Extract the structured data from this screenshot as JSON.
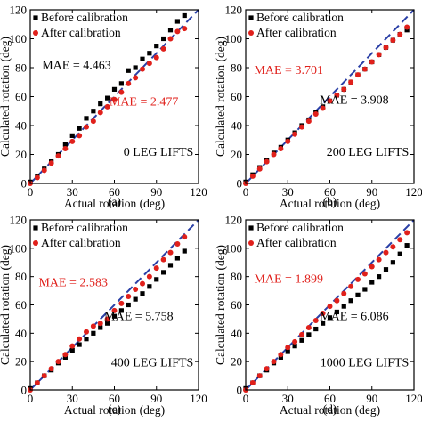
{
  "chart_data": [
    {
      "type": "scatter",
      "caption": "(a)",
      "label": "0 LEG LIFTS",
      "xlabel": "Actual rotation (deg)",
      "ylabel": "Calculated rotation (deg)",
      "xlim": [
        0,
        120
      ],
      "ylim": [
        0,
        120
      ],
      "xticks": [
        "0",
        "30",
        "60",
        "90",
        "120"
      ],
      "yticks": [
        "0",
        "20",
        "40",
        "60",
        "80",
        "100",
        "120"
      ],
      "legend": [
        "Before calibration",
        "After calibration"
      ],
      "legend_position": "top-left",
      "reference_line": [
        [
          0,
          0
        ],
        [
          120,
          120
        ]
      ],
      "annotations": [
        {
          "text": "MAE = 4.463",
          "color": "#000000"
        },
        {
          "text": "MAE = 2.477",
          "color": "#e0201b"
        }
      ],
      "series": [
        {
          "name": "Before calibration",
          "color": "#000000",
          "marker": "square",
          "x": [
            0,
            5,
            10,
            15,
            20,
            25,
            30,
            35,
            40,
            45,
            50,
            55,
            60,
            65,
            70,
            75,
            80,
            85,
            90,
            95,
            100,
            105,
            110
          ],
          "y": [
            1,
            5,
            10,
            15,
            20,
            27,
            33,
            38,
            45,
            50,
            55,
            59,
            65,
            69,
            78,
            80,
            86,
            90,
            95,
            100,
            106,
            112,
            116
          ]
        },
        {
          "name": "After calibration",
          "color": "#e0201b",
          "marker": "circle",
          "x": [
            0,
            5,
            10,
            15,
            20,
            25,
            30,
            35,
            40,
            45,
            50,
            55,
            60,
            65,
            70,
            75,
            80,
            85,
            90,
            95,
            100,
            105,
            110
          ],
          "y": [
            0,
            4,
            9,
            14,
            19,
            24,
            29,
            33,
            39,
            43,
            49,
            53,
            58,
            63,
            69,
            73,
            79,
            83,
            87,
            93,
            100,
            105,
            107
          ]
        }
      ]
    },
    {
      "type": "scatter",
      "caption": "(b)",
      "label": "200 LEG LIFTS",
      "xlabel": "Actual rotation (deg)",
      "ylabel": "Calculated rotation (deg)",
      "xlim": [
        0,
        120
      ],
      "ylim": [
        0,
        120
      ],
      "xticks": [
        "0",
        "30",
        "60",
        "90",
        "120"
      ],
      "yticks": [
        "0",
        "20",
        "40",
        "60",
        "80",
        "100",
        "120"
      ],
      "legend": [
        "Before calibration",
        "After calibration"
      ],
      "legend_position": "top-left",
      "reference_line": [
        [
          0,
          0
        ],
        [
          120,
          120
        ]
      ],
      "annotations": [
        {
          "text": "MAE = 3.701",
          "color": "#e0201b"
        },
        {
          "text": "MAE = 3.908",
          "color": "#000000"
        }
      ],
      "series": [
        {
          "name": "Before calibration",
          "color": "#000000",
          "marker": "square",
          "x": [
            0,
            5,
            10,
            15,
            20,
            25,
            30,
            35,
            40,
            45,
            50,
            55,
            60,
            65,
            70,
            75,
            80,
            85,
            90,
            95,
            100,
            105,
            110,
            115
          ],
          "y": [
            1,
            6,
            11,
            16,
            21,
            25,
            30,
            35,
            40,
            44,
            49,
            53,
            57,
            61,
            65,
            70,
            75,
            79,
            84,
            89,
            94,
            99,
            103,
            106
          ]
        },
        {
          "name": "After calibration",
          "color": "#e0201b",
          "marker": "circle",
          "x": [
            0,
            5,
            10,
            15,
            20,
            25,
            30,
            35,
            40,
            45,
            50,
            55,
            60,
            65,
            70,
            75,
            80,
            85,
            90,
            95,
            100,
            105,
            110,
            115
          ],
          "y": [
            0,
            5,
            10,
            15,
            20,
            24,
            29,
            34,
            39,
            43,
            48,
            52,
            57,
            61,
            65,
            70,
            75,
            79,
            84,
            89,
            94,
            99,
            103,
            108
          ]
        }
      ]
    },
    {
      "type": "scatter",
      "caption": "(c)",
      "label": "400 LEG LIFTS",
      "xlabel": "Actual rotation (deg)",
      "ylabel": "Calculated rotation (deg)",
      "xlim": [
        0,
        120
      ],
      "ylim": [
        0,
        120
      ],
      "xticks": [
        "0",
        "30",
        "60",
        "90",
        "120"
      ],
      "yticks": [
        "0",
        "20",
        "40",
        "60",
        "80",
        "100",
        "120"
      ],
      "legend": [
        "Before calibration",
        "After calibration"
      ],
      "legend_position": "top-left",
      "reference_line": [
        [
          0,
          0
        ],
        [
          120,
          120
        ]
      ],
      "annotations": [
        {
          "text": "MAE = 2.583",
          "color": "#e0201b"
        },
        {
          "text": "MAE = 5.758",
          "color": "#000000"
        }
      ],
      "series": [
        {
          "name": "Before calibration",
          "color": "#000000",
          "marker": "square",
          "x": [
            0,
            5,
            10,
            15,
            20,
            25,
            30,
            35,
            40,
            45,
            50,
            55,
            60,
            65,
            70,
            75,
            80,
            85,
            90,
            95,
            100,
            105,
            110
          ],
          "y": [
            1,
            5,
            10,
            14,
            19,
            23,
            28,
            32,
            36,
            40,
            44,
            47,
            52,
            56,
            60,
            64,
            68,
            73,
            78,
            83,
            88,
            93,
            98
          ]
        },
        {
          "name": "After calibration",
          "color": "#e0201b",
          "marker": "circle",
          "x": [
            0,
            5,
            10,
            15,
            20,
            25,
            30,
            35,
            40,
            45,
            50,
            55,
            60,
            65,
            70,
            75,
            80,
            85,
            90,
            95,
            100,
            105,
            110
          ],
          "y": [
            0,
            5,
            10,
            15,
            20,
            25,
            31,
            36,
            41,
            45,
            47,
            50,
            56,
            61,
            66,
            71,
            75,
            80,
            86,
            92,
            97,
            103,
            108
          ]
        }
      ]
    },
    {
      "type": "scatter",
      "caption": "(d)",
      "label": "1000 LEG LIFTS",
      "xlabel": "Actual rotation (deg)",
      "ylabel": "Calculated rotation (deg)",
      "xlim": [
        0,
        120
      ],
      "ylim": [
        0,
        120
      ],
      "xticks": [
        "0",
        "30",
        "60",
        "90",
        "120"
      ],
      "yticks": [
        "0",
        "20",
        "40",
        "60",
        "80",
        "100",
        "120"
      ],
      "legend": [
        "Before calibration",
        "After calibration"
      ],
      "legend_position": "top-left",
      "reference_line": [
        [
          0,
          0
        ],
        [
          120,
          120
        ]
      ],
      "annotations": [
        {
          "text": "MAE = 1.899",
          "color": "#e0201b"
        },
        {
          "text": "MAE = 6.086",
          "color": "#000000"
        }
      ],
      "series": [
        {
          "name": "Before calibration",
          "color": "#000000",
          "marker": "square",
          "x": [
            0,
            5,
            10,
            15,
            20,
            25,
            30,
            35,
            40,
            45,
            50,
            55,
            60,
            65,
            70,
            75,
            80,
            85,
            90,
            95,
            100,
            105,
            110,
            115
          ],
          "y": [
            1,
            5,
            10,
            14,
            19,
            23,
            27,
            31,
            35,
            39,
            43,
            47,
            51,
            55,
            59,
            63,
            67,
            71,
            76,
            80,
            85,
            90,
            96,
            102
          ]
        },
        {
          "name": "After calibration",
          "color": "#e0201b",
          "marker": "circle",
          "x": [
            0,
            5,
            10,
            15,
            20,
            25,
            30,
            35,
            40,
            45,
            50,
            55,
            60,
            65,
            70,
            75,
            80,
            85,
            90,
            95,
            100,
            105,
            110,
            115
          ],
          "y": [
            0,
            5,
            10,
            15,
            20,
            25,
            30,
            34,
            39,
            44,
            49,
            54,
            59,
            63,
            68,
            73,
            78,
            82,
            87,
            92,
            97,
            101,
            106,
            111
          ]
        }
      ]
    }
  ]
}
